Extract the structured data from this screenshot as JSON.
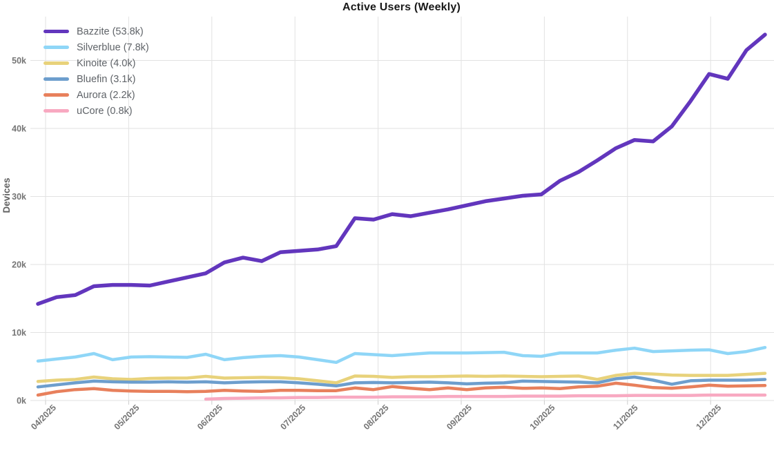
{
  "chart_data": {
    "type": "line",
    "title": "Active Users (Weekly)",
    "xlabel": "",
    "ylabel": "Devices",
    "x_tick_labels": [
      "04/2025",
      "05/2025",
      "06/2025",
      "07/2025",
      "08/2025",
      "09/2025",
      "10/2025",
      "11/2025",
      "12/2025"
    ],
    "y_tick_labels": [
      "0k",
      "10k",
      "20k",
      "30k",
      "40k",
      "50k"
    ],
    "y_tick_values": [
      0,
      10,
      20,
      30,
      40,
      50
    ],
    "ylim": [
      0,
      55.8
    ],
    "grid": true,
    "legend_position": "top-left",
    "x_unit": "weeks (late Mar 2025 – late Dec 2025)",
    "grid_color": "#e2e2e2",
    "tick_text_color": "#757575",
    "title_color": "#191919",
    "legend_text_color": "#5f6368",
    "series": [
      {
        "name": "Bazzite",
        "legend_label": "Bazzite (53.8k)",
        "latest_value_k": 53.8,
        "color": "#6236bd",
        "values": [
          14.2,
          15.2,
          15.5,
          16.8,
          17.0,
          17.0,
          16.9,
          17.5,
          18.1,
          18.7,
          20.3,
          21.0,
          20.5,
          21.8,
          22.0,
          22.2,
          22.7,
          26.8,
          26.6,
          27.4,
          27.1,
          27.6,
          28.1,
          28.7,
          29.3,
          29.7,
          30.1,
          30.3,
          32.3,
          33.6,
          35.3,
          37.1,
          38.3,
          38.1,
          40.3,
          44.0,
          48.0,
          47.3,
          51.5,
          53.8
        ]
      },
      {
        "name": "Silverblue",
        "legend_label": "Silverblue (7.8k)",
        "latest_value_k": 7.8,
        "color": "#8fd6f7",
        "values": [
          5.8,
          6.1,
          6.4,
          6.9,
          6.0,
          6.4,
          6.45,
          6.4,
          6.35,
          6.8,
          6.0,
          6.3,
          6.5,
          6.6,
          6.4,
          6.0,
          5.6,
          6.9,
          6.75,
          6.6,
          6.8,
          7.0,
          7.0,
          7.0,
          7.05,
          7.1,
          6.6,
          6.5,
          7.0,
          7.0,
          7.0,
          7.4,
          7.7,
          7.2,
          7.3,
          7.4,
          7.45,
          6.9,
          7.2,
          7.8
        ]
      },
      {
        "name": "Kinoite",
        "legend_label": "Kinoite (4.0k)",
        "latest_value_k": 4.0,
        "color": "#e8d27b",
        "values": [
          2.8,
          3.0,
          3.1,
          3.45,
          3.2,
          3.1,
          3.25,
          3.3,
          3.3,
          3.55,
          3.3,
          3.35,
          3.4,
          3.35,
          3.2,
          2.9,
          2.6,
          3.6,
          3.55,
          3.4,
          3.5,
          3.5,
          3.55,
          3.6,
          3.55,
          3.6,
          3.55,
          3.5,
          3.55,
          3.6,
          3.1,
          3.7,
          4.0,
          3.9,
          3.75,
          3.7,
          3.7,
          3.7,
          3.85,
          4.0
        ]
      },
      {
        "name": "Bluefin",
        "legend_label": "Bluefin (3.1k)",
        "latest_value_k": 3.1,
        "color": "#6d9ecd",
        "values": [
          2.0,
          2.3,
          2.6,
          2.85,
          2.75,
          2.7,
          2.7,
          2.75,
          2.7,
          2.75,
          2.6,
          2.7,
          2.75,
          2.75,
          2.6,
          2.4,
          2.15,
          2.6,
          2.65,
          2.6,
          2.65,
          2.7,
          2.6,
          2.45,
          2.55,
          2.6,
          2.85,
          2.8,
          2.75,
          2.7,
          2.6,
          3.2,
          3.45,
          3.0,
          2.4,
          2.9,
          3.0,
          3.0,
          3.0,
          3.1
        ]
      },
      {
        "name": "Aurora",
        "legend_label": "Aurora (2.2k)",
        "latest_value_k": 2.2,
        "color": "#e8805c",
        "values": [
          0.8,
          1.3,
          1.6,
          1.75,
          1.5,
          1.4,
          1.35,
          1.35,
          1.3,
          1.35,
          1.5,
          1.4,
          1.35,
          1.5,
          1.5,
          1.45,
          1.45,
          1.85,
          1.6,
          2.05,
          1.8,
          1.6,
          1.85,
          1.6,
          1.85,
          1.95,
          1.8,
          1.85,
          1.75,
          2.0,
          2.1,
          2.55,
          2.25,
          1.9,
          1.8,
          2.0,
          2.25,
          2.1,
          2.15,
          2.2
        ]
      },
      {
        "name": "uCore",
        "legend_label": "uCore (0.8k)",
        "latest_value_k": 0.8,
        "color": "#f8a9c1",
        "values": [
          null,
          null,
          null,
          null,
          null,
          null,
          null,
          null,
          null,
          0.2,
          0.3,
          0.35,
          0.4,
          0.4,
          0.45,
          0.45,
          0.5,
          0.5,
          0.5,
          0.55,
          0.55,
          0.55,
          0.6,
          0.6,
          0.6,
          0.6,
          0.65,
          0.65,
          0.65,
          0.7,
          0.7,
          0.7,
          0.75,
          0.75,
          0.75,
          0.75,
          0.8,
          0.8,
          0.8,
          0.8
        ]
      }
    ]
  }
}
